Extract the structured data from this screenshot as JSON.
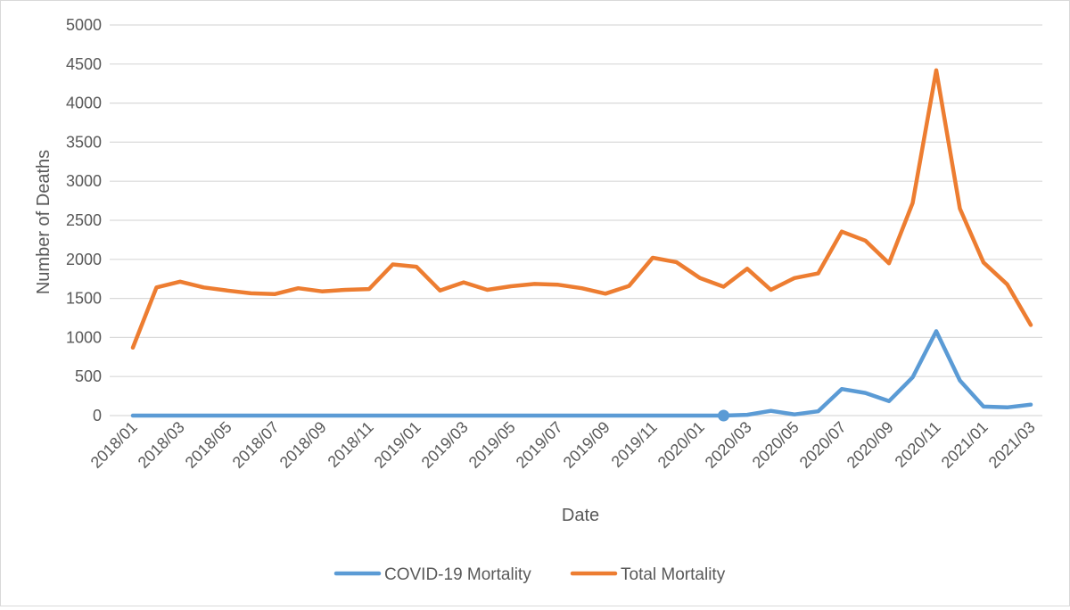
{
  "chart_data": {
    "type": "line",
    "title": "",
    "xlabel": "Date",
    "ylabel": "Number of Deaths",
    "ylim": [
      0,
      5000
    ],
    "yticks": [
      0,
      500,
      1000,
      1500,
      2000,
      2500,
      3000,
      3500,
      4000,
      4500,
      5000
    ],
    "grid": true,
    "legend_position": "bottom",
    "x": [
      "2018/01",
      "2018/02",
      "2018/03",
      "2018/04",
      "2018/05",
      "2018/06",
      "2018/07",
      "2018/08",
      "2018/09",
      "2018/10",
      "2018/11",
      "2018/12",
      "2019/01",
      "2019/02",
      "2019/03",
      "2019/04",
      "2019/05",
      "2019/06",
      "2019/07",
      "2019/08",
      "2019/09",
      "2019/10",
      "2019/11",
      "2019/12",
      "2020/01",
      "2020/02",
      "2020/03",
      "2020/04",
      "2020/05",
      "2020/06",
      "2020/07",
      "2020/08",
      "2020/09",
      "2020/10",
      "2020/11",
      "2020/12",
      "2021/01",
      "2021/02",
      "2021/03"
    ],
    "xtick_labels": [
      "2018/01",
      "2018/03",
      "2018/05",
      "2018/07",
      "2018/09",
      "2018/11",
      "2019/01",
      "2019/03",
      "2019/05",
      "2019/07",
      "2019/09",
      "2019/11",
      "2020/01",
      "2020/03",
      "2020/05",
      "2020/07",
      "2020/09",
      "2020/11",
      "2021/01",
      "2021/03"
    ],
    "series": [
      {
        "name": "COVID-19 Mortality",
        "color": "#5b9bd5",
        "values": [
          0,
          0,
          0,
          0,
          0,
          0,
          0,
          0,
          0,
          0,
          0,
          0,
          0,
          0,
          0,
          0,
          0,
          0,
          0,
          0,
          0,
          0,
          0,
          0,
          0,
          0,
          10,
          60,
          15,
          55,
          340,
          290,
          185,
          490,
          1080,
          450,
          115,
          105,
          140
        ],
        "marker_index": 25
      },
      {
        "name": "Total Mortality",
        "color": "#ed7d31",
        "values": [
          870,
          1640,
          1715,
          1640,
          1600,
          1565,
          1555,
          1630,
          1590,
          1610,
          1620,
          1935,
          1905,
          1600,
          1705,
          1610,
          1655,
          1685,
          1675,
          1630,
          1560,
          1660,
          2020,
          1965,
          1760,
          1650,
          1880,
          1610,
          1760,
          1820,
          2355,
          2240,
          1950,
          2720,
          4420,
          2650,
          1960,
          1680,
          1160
        ]
      }
    ]
  }
}
